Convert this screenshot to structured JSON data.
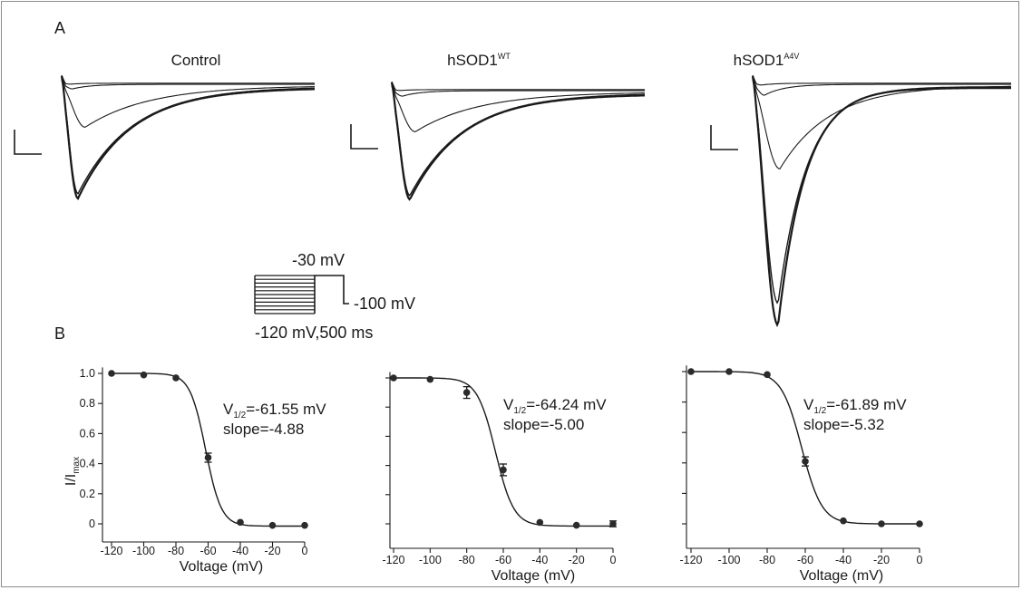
{
  "panels": {
    "a": "A",
    "b": "B"
  },
  "traces": [
    {
      "title_main": "Control",
      "title_sup": "",
      "color": "#1a1a1a"
    },
    {
      "title_main": "hSOD1",
      "title_sup": "WT",
      "color": "#1a1a1a"
    },
    {
      "title_main": "hSOD1",
      "title_sup": "A4V",
      "color": "#1a1a1a"
    }
  ],
  "protocol": {
    "step_label": "-30 mV",
    "hold_label": "-100 mV",
    "prepulse_label": "-120 mV,500 ms"
  },
  "chart_data": [
    {
      "type": "scatter",
      "title": "",
      "xlabel": "Voltage (mV)",
      "ylabel_main": "I/I",
      "ylabel_sub": "max",
      "xlim": [
        -120,
        0
      ],
      "ylim": [
        -0.08,
        1.04
      ],
      "xticks": [
        "-120",
        "-100",
        "-80",
        "-60",
        "-40",
        "-20",
        "0"
      ],
      "yticks": [
        "0",
        "0.2",
        "0.4",
        "0.6",
        "0.8",
        "1.0"
      ],
      "x": [
        -120,
        -100,
        -80,
        -60,
        -40,
        -20,
        0
      ],
      "y": [
        1.0,
        0.99,
        0.97,
        0.44,
        0.01,
        -0.01,
        -0.01
      ],
      "err": [
        0,
        0,
        0,
        0.03,
        0,
        0,
        0
      ],
      "fit": {
        "v_half": -61.55,
        "slope": -4.88,
        "top": 1.0,
        "bottom": -0.015
      },
      "annotation_v_main": "V",
      "annotation_v_sub": "1/2",
      "annotation_v_value": "=-61.55 mV",
      "annotation_slope": "slope=-4.88"
    },
    {
      "type": "scatter",
      "title": "",
      "xlabel": "Voltage (mV)",
      "xlim": [
        -120,
        0
      ],
      "ylim": [
        -0.08,
        1.04
      ],
      "xticks": [
        "-120",
        "-100",
        "-80",
        "-60",
        "-40",
        "-20",
        "0"
      ],
      "x": [
        -120,
        -100,
        -80,
        -60,
        -40,
        -20,
        0
      ],
      "y": [
        1.0,
        0.99,
        0.9,
        0.37,
        0.01,
        -0.01,
        0.0
      ],
      "err": [
        0,
        0,
        0.04,
        0.04,
        0,
        0,
        0.02
      ],
      "fit": {
        "v_half": -64.24,
        "slope": -5.0,
        "top": 1.0,
        "bottom": -0.015
      },
      "annotation_v_main": "V",
      "annotation_v_sub": "1/2",
      "annotation_v_value": "=-64.24 mV",
      "annotation_slope": "slope=-5.00"
    },
    {
      "type": "scatter",
      "title": "",
      "xlabel": "Voltage (mV)",
      "xlim": [
        -120,
        0
      ],
      "ylim": [
        -0.08,
        1.04
      ],
      "xticks": [
        "-120",
        "-100",
        "-80",
        "-60",
        "-40",
        "-20",
        "0"
      ],
      "x": [
        -120,
        -100,
        -80,
        -60,
        -40,
        -20,
        0
      ],
      "y": [
        1.0,
        1.0,
        0.98,
        0.41,
        0.02,
        0.0,
        0.0
      ],
      "err": [
        0,
        0,
        0,
        0.03,
        0,
        0,
        0
      ],
      "fit": {
        "v_half": -61.89,
        "slope": -5.32,
        "top": 1.0,
        "bottom": 0.0
      },
      "annotation_v_main": "V",
      "annotation_v_sub": "1/2",
      "annotation_v_value": "=-61.89 mV",
      "annotation_slope": "slope=-5.32"
    }
  ]
}
